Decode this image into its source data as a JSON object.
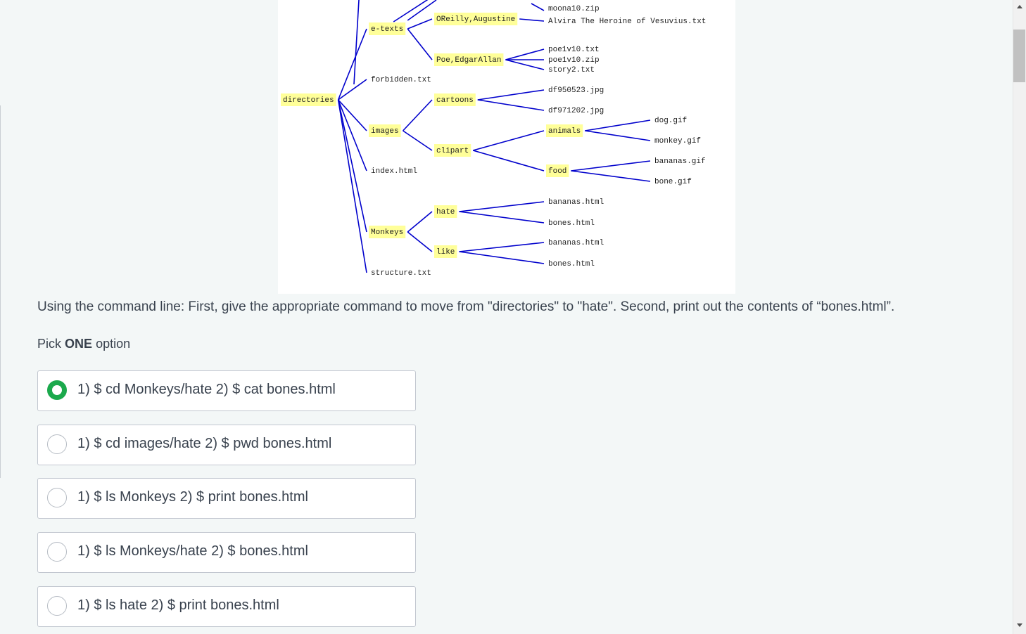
{
  "tree": {
    "nodes": [
      {
        "label": "directories",
        "dir": true
      },
      {
        "label": "e-texts",
        "dir": true
      },
      {
        "label": "forbidden.txt",
        "dir": false
      },
      {
        "label": "images",
        "dir": true
      },
      {
        "label": "index.html",
        "dir": false
      },
      {
        "label": "Monkeys",
        "dir": true
      },
      {
        "label": "structure.txt",
        "dir": false
      },
      {
        "label": "OReilly,Augustine",
        "dir": true
      },
      {
        "label": "Poe,EdgarAllan",
        "dir": true
      },
      {
        "label": "moona10.zip",
        "dir": false
      },
      {
        "label": "Alvira   The Heroine of Vesuvius.txt",
        "dir": false
      },
      {
        "label": "poe1v10.txt",
        "dir": false
      },
      {
        "label": "poe1v10.zip",
        "dir": false
      },
      {
        "label": "story2.txt",
        "dir": false
      },
      {
        "label": "cartoons",
        "dir": true
      },
      {
        "label": "clipart",
        "dir": true
      },
      {
        "label": "df950523.jpg",
        "dir": false
      },
      {
        "label": "df971202.jpg",
        "dir": false
      },
      {
        "label": "animals",
        "dir": true
      },
      {
        "label": "food",
        "dir": true
      },
      {
        "label": "dog.gif",
        "dir": false
      },
      {
        "label": "monkey.gif",
        "dir": false
      },
      {
        "label": "bananas.gif",
        "dir": false
      },
      {
        "label": "bone.gif",
        "dir": false
      },
      {
        "label": "hate",
        "dir": true
      },
      {
        "label": "like",
        "dir": true
      },
      {
        "label": "bananas.html",
        "dir": false
      },
      {
        "label": "bones.html",
        "dir": false
      },
      {
        "label": "bananas.html",
        "dir": false
      },
      {
        "label": "bones.html",
        "dir": false
      }
    ]
  },
  "question": "Using the command line: First, give the appropriate command to move from \"directories\" to \"hate\". Second, print out the contents of “bones.html”.",
  "pick": {
    "prefix": "Pick",
    "emphasis": "ONE",
    "suffix": "option"
  },
  "options": [
    "1) $ cd Monkeys/hate 2) $ cat bones.html",
    "1) $ cd images/hate 2) $ pwd bones.html",
    "1) $ ls Monkeys 2) $ print bones.html",
    "1) $ ls Monkeys/hate 2) $ bones.html",
    "1) $ ls hate 2) $ print bones.html"
  ],
  "selected": 0
}
